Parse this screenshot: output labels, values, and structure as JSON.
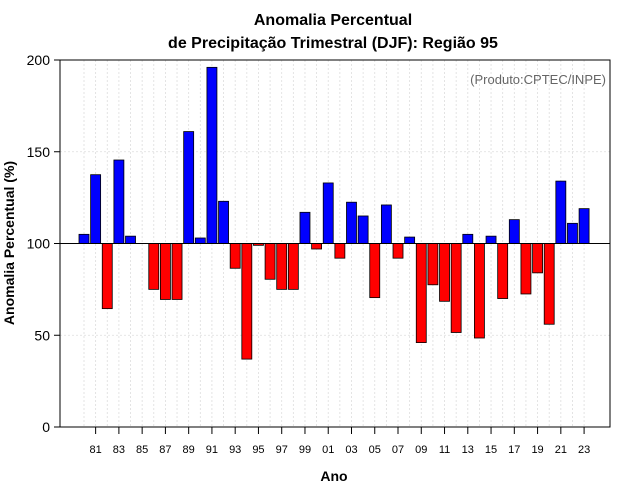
{
  "chart_data": {
    "type": "bar",
    "title_line1": "Anomalia Percentual",
    "title_line2": "de Precipitação Trimestral (DJF): Região 95",
    "xlabel": "Ano",
    "ylabel": "Anomalia Percentual (%)",
    "credit": "(Produto:CPTEC/INPE)",
    "ylim": [
      0,
      200
    ],
    "yticks": [
      0,
      50,
      100,
      150,
      200
    ],
    "baseline": 100,
    "grid": true,
    "colors": {
      "above": "#0000ff",
      "below": "#ff0000",
      "baseline": "#000000"
    },
    "years": [
      "80",
      "81",
      "82",
      "83",
      "84",
      "85",
      "86",
      "87",
      "88",
      "89",
      "90",
      "91",
      "92",
      "93",
      "94",
      "95",
      "96",
      "97",
      "98",
      "99",
      "00",
      "01",
      "02",
      "03",
      "04",
      "05",
      "06",
      "07",
      "08",
      "09",
      "10",
      "11",
      "12",
      "13",
      "14",
      "15",
      "16",
      "17",
      "18",
      "19",
      "20",
      "21",
      "22",
      "23"
    ],
    "values": [
      105,
      137.5,
      64.5,
      145.5,
      104,
      null,
      75,
      69.5,
      69.5,
      161,
      103,
      196,
      123,
      86.5,
      37,
      99,
      80.5,
      75,
      75,
      117,
      97,
      133,
      92,
      122.5,
      115,
      70.5,
      121,
      92,
      103.5,
      46,
      77.5,
      68.5,
      51.5,
      105,
      48.5,
      104,
      70,
      113,
      72.5,
      84,
      56,
      134,
      111,
      119
    ],
    "xtick_labels": [
      "81",
      "83",
      "85",
      "87",
      "89",
      "91",
      "93",
      "95",
      "97",
      "99",
      "01",
      "03",
      "05",
      "07",
      "09",
      "11",
      "13",
      "15",
      "17",
      "19",
      "21",
      "23"
    ]
  }
}
